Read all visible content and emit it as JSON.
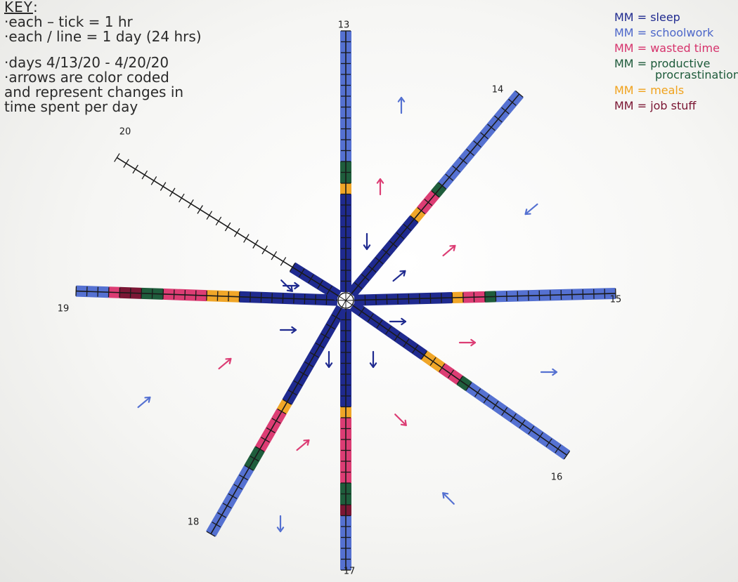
{
  "key": {
    "title": "KEY",
    "title_suffix": ":",
    "lines": [
      "·each – tick = 1 hr",
      "·each / line = 1 day (24 hrs)",
      "·days 4/13/20 - 4/20/20",
      "·arrows are color coded",
      "and represent changes in",
      "time spent per day"
    ]
  },
  "legend": [
    {
      "swatch": "MM",
      "label": "= sleep",
      "color": "#1f2a8f"
    },
    {
      "swatch": "MM",
      "label": "= schoolwork",
      "color": "#4c66c9"
    },
    {
      "swatch": "MM",
      "label": "= wasted time",
      "color": "#d6336c"
    },
    {
      "swatch": "MM",
      "label": "= productive",
      "label_2": "procrastination",
      "color": "#1d5a3a"
    },
    {
      "swatch": "MM",
      "label": "= meals",
      "color": "#f0a21c"
    },
    {
      "swatch": "MM",
      "label": "= job stuff",
      "color": "#7a1532"
    }
  ],
  "activity_colors": {
    "sleep": "#1f2a8f",
    "schoolwork": "#5571d1",
    "wasted": "#dc3d74",
    "productive": "#1f5d3c",
    "meals": "#f0a628",
    "job": "#7b1735"
  },
  "days": [
    {
      "label": "13",
      "segments": [
        [
          "sleep",
          9
        ],
        [
          "meals",
          1
        ],
        [
          "productive",
          2
        ],
        [
          "schoolwork",
          12
        ]
      ]
    },
    {
      "label": "14",
      "segments": [
        [
          "sleep",
          9
        ],
        [
          "meals",
          1
        ],
        [
          "wasted",
          2
        ],
        [
          "productive",
          1
        ],
        [
          "schoolwork",
          11
        ]
      ]
    },
    {
      "label": "15",
      "segments": [
        [
          "sleep",
          9
        ],
        [
          "meals",
          1
        ],
        [
          "wasted",
          2
        ],
        [
          "productive",
          1
        ],
        [
          "schoolwork",
          11
        ]
      ]
    },
    {
      "label": "16",
      "segments": [
        [
          "sleep",
          8
        ],
        [
          "meals",
          2
        ],
        [
          "wasted",
          2
        ],
        [
          "productive",
          1
        ],
        [
          "schoolwork",
          11
        ]
      ]
    },
    {
      "label": "17",
      "segments": [
        [
          "sleep",
          9
        ],
        [
          "meals",
          1
        ],
        [
          "wasted",
          6
        ],
        [
          "productive",
          2
        ],
        [
          "job",
          1
        ],
        [
          "schoolwork",
          5
        ]
      ]
    },
    {
      "label": "18",
      "segments": [
        [
          "sleep",
          10
        ],
        [
          "meals",
          1
        ],
        [
          "wasted",
          4
        ],
        [
          "productive",
          2
        ],
        [
          "schoolwork",
          7
        ]
      ]
    },
    {
      "label": "19",
      "segments": [
        [
          "sleep",
          9
        ],
        [
          "meals",
          3
        ],
        [
          "wasted",
          4
        ],
        [
          "productive",
          2
        ],
        [
          "job",
          2
        ],
        [
          "wasted",
          1
        ],
        [
          "schoolwork",
          3
        ]
      ]
    },
    {
      "label": "20",
      "segments": [
        [
          "sleep",
          5
        ]
      ]
    }
  ],
  "arrows": [
    {
      "kind": "schoolwork",
      "dir": "up"
    },
    {
      "kind": "wasted",
      "dir": "up"
    },
    {
      "kind": "sleep",
      "dir": "down"
    },
    {
      "kind": "schoolwork",
      "dir": "down-left"
    },
    {
      "kind": "wasted",
      "dir": "up-right"
    },
    {
      "kind": "sleep",
      "dir": "up-right"
    },
    {
      "kind": "sleep",
      "dir": "right"
    },
    {
      "kind": "sleep",
      "dir": "right"
    },
    {
      "kind": "sleep",
      "dir": "right"
    },
    {
      "kind": "wasted",
      "dir": "right"
    },
    {
      "kind": "schoolwork",
      "dir": "right"
    },
    {
      "kind": "sleep",
      "dir": "down"
    },
    {
      "kind": "sleep",
      "dir": "down"
    },
    {
      "kind": "wasted",
      "dir": "down-right"
    },
    {
      "kind": "schoolwork",
      "dir": "up-left"
    },
    {
      "kind": "wasted",
      "dir": "up-right"
    },
    {
      "kind": "schoolwork",
      "dir": "down"
    },
    {
      "kind": "wasted",
      "dir": "up-right"
    },
    {
      "kind": "schoolwork",
      "dir": "up-right"
    },
    {
      "kind": "sleep",
      "dir": "down-right"
    }
  ]
}
